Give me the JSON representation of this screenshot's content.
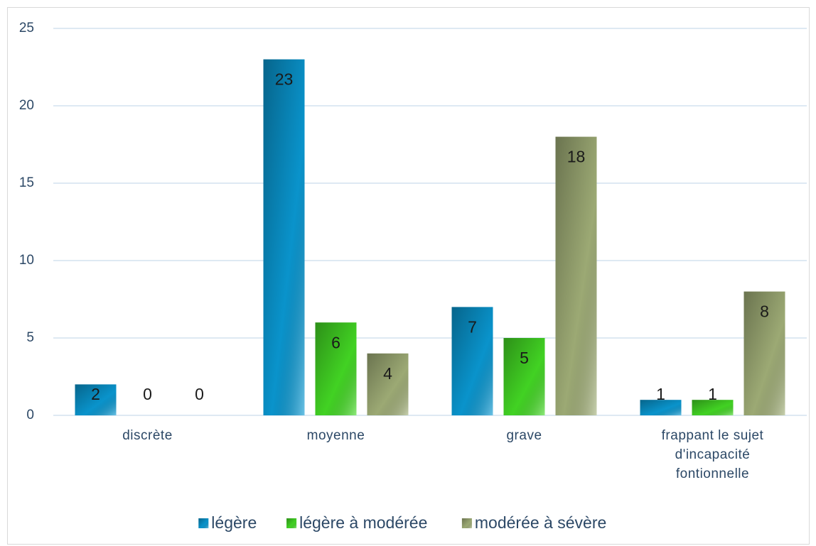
{
  "chart_data": {
    "type": "bar",
    "categories": [
      "discrète",
      "moyenne",
      "grave",
      "frappant le sujet d'incapacité fontionnelle"
    ],
    "series": [
      {
        "name": "légère",
        "color": "#0a9bd6",
        "values": [
          2,
          23,
          7,
          1
        ]
      },
      {
        "name": "légère à modérée",
        "color": "#45dd25",
        "values": [
          0,
          6,
          5,
          1
        ]
      },
      {
        "name": "modérée à sévère",
        "color": "#a4b27a",
        "values": [
          0,
          4,
          18,
          8
        ]
      }
    ],
    "ylim": [
      0,
      25
    ],
    "yticks": [
      0,
      5,
      10,
      15,
      20,
      25
    ],
    "grid": true,
    "legend": "bottom"
  }
}
